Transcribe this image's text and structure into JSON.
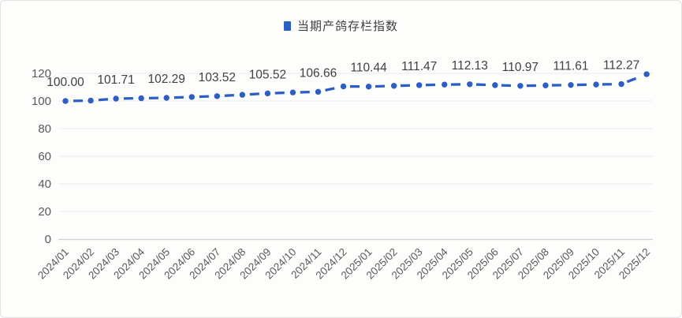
{
  "card": {
    "background": "#fdfdfc",
    "border_color": "#e2e2e0"
  },
  "legend": {
    "label": "当期产鸽存栏指数",
    "marker_color": "#2b5fc7",
    "text_color": "#3f3f3f"
  },
  "chart_data": {
    "type": "line",
    "title": "当期产鸽存栏指数",
    "categories": [
      "2024/01",
      "2024/02",
      "2024/03",
      "2024/04",
      "2024/05",
      "2024/06",
      "2024/07",
      "2024/08",
      "2024/09",
      "2024/10",
      "2024/11",
      "2024/12",
      "2025/01",
      "2025/02",
      "2025/03",
      "2025/04",
      "2025/05",
      "2025/06",
      "2025/07",
      "2025/08",
      "2025/09",
      "2025/10",
      "2025/11",
      "2025/12"
    ],
    "series": [
      {
        "name": "当期产鸽存栏指数",
        "color": "#2b5fc7",
        "values": [
          100.0,
          100.3,
          101.71,
          102.0,
          102.29,
          102.9,
          103.52,
          104.5,
          105.52,
          106.2,
          106.66,
          110.6,
          110.44,
          111.0,
          111.47,
          111.9,
          112.13,
          111.5,
          110.97,
          111.3,
          111.61,
          111.95,
          112.27,
          119.4
        ],
        "data_labels": [
          "100.00",
          "",
          "101.71",
          "",
          "102.29",
          "",
          "103.52",
          "",
          "105.52",
          "",
          "106.66",
          "",
          "110.44",
          "",
          "111.47",
          "",
          "112.13",
          "",
          "110.97",
          "",
          "111.61",
          "",
          "112.27",
          ""
        ]
      }
    ],
    "xlabel": "",
    "ylabel": "",
    "ylim": [
      0,
      120
    ],
    "yticks": [
      0,
      20,
      40,
      60,
      80,
      100,
      120
    ],
    "grid": true,
    "legend_position": "top-center",
    "line_style": "dashed-with-round-markers",
    "label_color": "#404040",
    "axis_text_color": "#595959",
    "gridline_color": "#ececec",
    "axis_line_color": "#cfcfcf"
  }
}
